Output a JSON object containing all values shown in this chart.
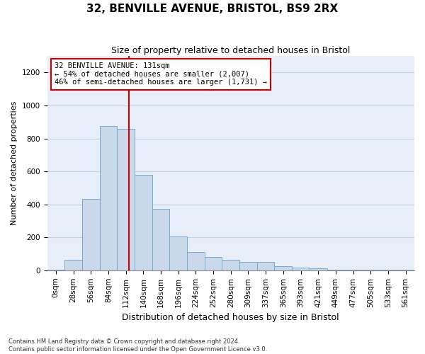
{
  "title1": "32, BENVILLE AVENUE, BRISTOL, BS9 2RX",
  "title2": "Size of property relative to detached houses in Bristol",
  "xlabel": "Distribution of detached houses by size in Bristol",
  "ylabel": "Number of detached properties",
  "bar_labels": [
    "0sqm",
    "28sqm",
    "56sqm",
    "84sqm",
    "112sqm",
    "140sqm",
    "168sqm",
    "196sqm",
    "224sqm",
    "252sqm",
    "280sqm",
    "309sqm",
    "337sqm",
    "365sqm",
    "393sqm",
    "421sqm",
    "449sqm",
    "477sqm",
    "505sqm",
    "533sqm",
    "561sqm"
  ],
  "bar_values": [
    2,
    62,
    435,
    875,
    858,
    580,
    375,
    205,
    110,
    80,
    65,
    50,
    50,
    25,
    15,
    10,
    5,
    5,
    2,
    2,
    2
  ],
  "bar_color": "#c9d9eb",
  "bar_edge_color": "#7aaacb",
  "grid_color": "#c5cfe0",
  "background_color": "#e8eef7",
  "red_line_color": "#cc0000",
  "annotation_text": "32 BENVILLE AVENUE: 131sqm\n← 54% of detached houses are smaller (2,007)\n46% of semi-detached houses are larger (1,731) →",
  "annotation_box_color": "#ffffff",
  "annotation_box_edge": "#cc0000",
  "footnote1": "Contains HM Land Registry data © Crown copyright and database right 2024.",
  "footnote2": "Contains public sector information licensed under the Open Government Licence v3.0.",
  "ylim": [
    0,
    1300
  ],
  "yticks": [
    0,
    200,
    400,
    600,
    800,
    1000,
    1200
  ],
  "title1_fontsize": 11,
  "title2_fontsize": 9,
  "ylabel_fontsize": 8,
  "xlabel_fontsize": 9,
  "tick_fontsize": 7.5,
  "annot_fontsize": 7.5
}
